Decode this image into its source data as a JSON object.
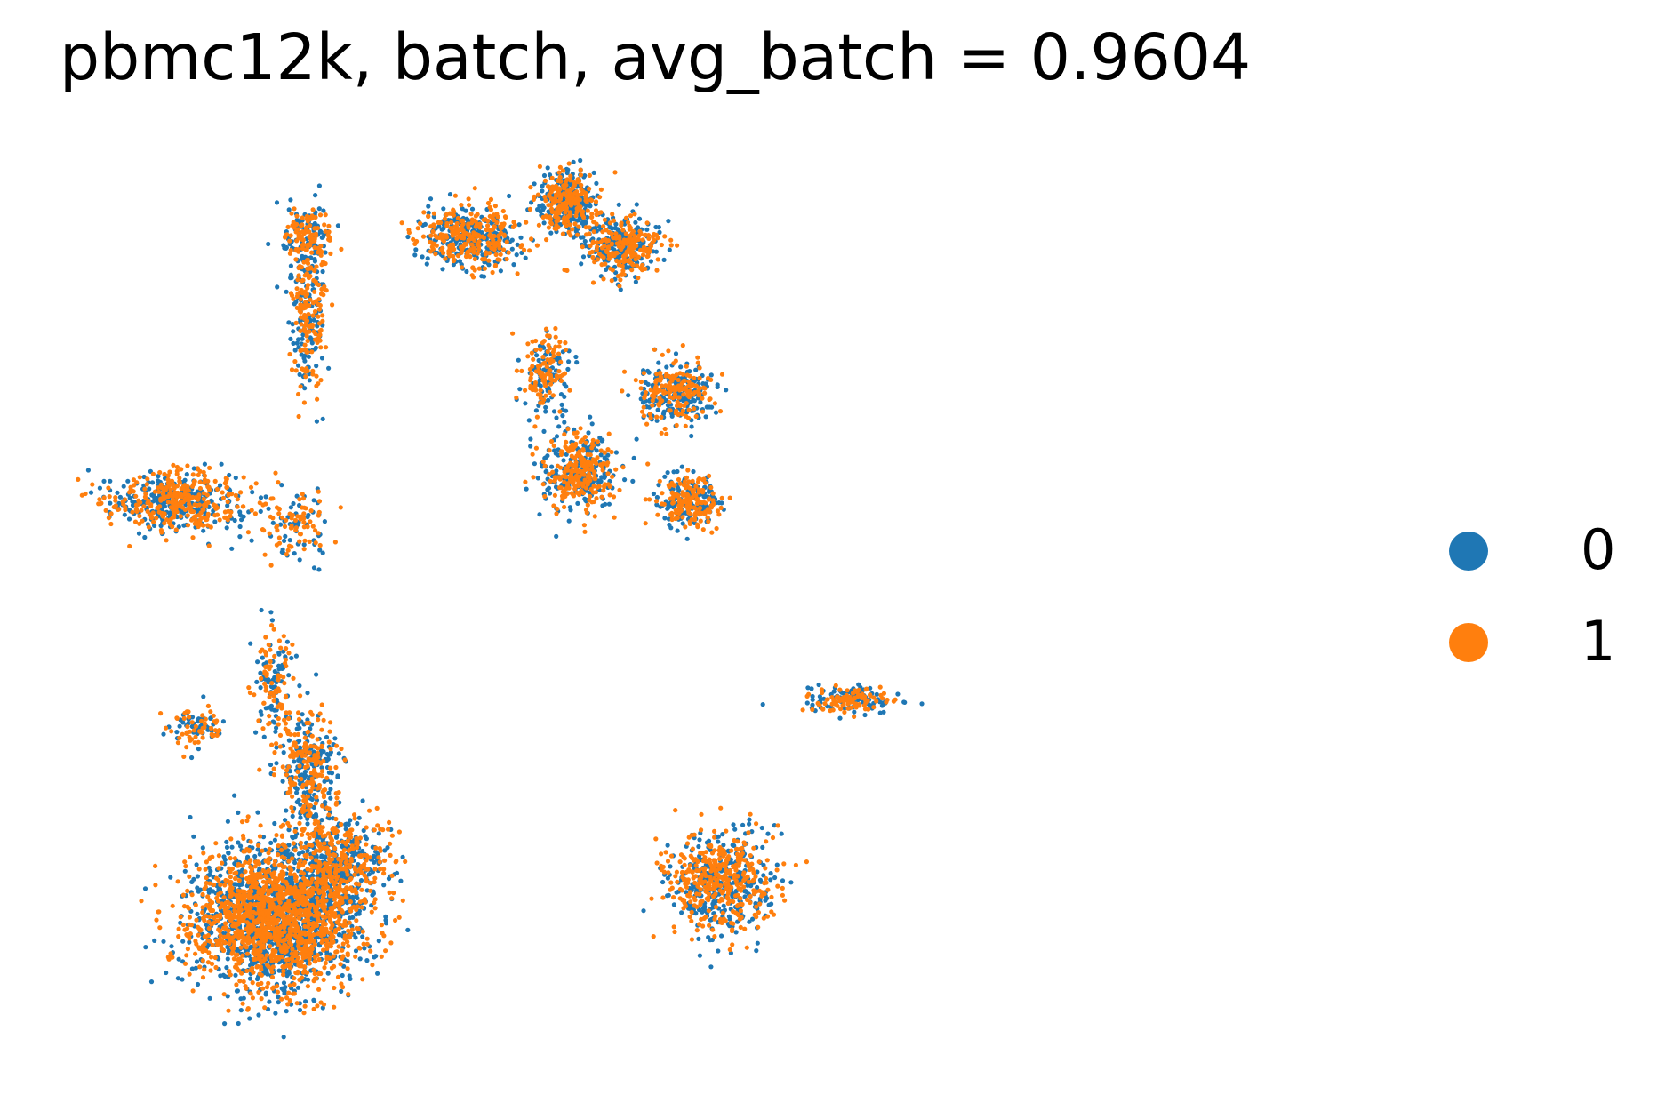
{
  "chart_data": {
    "type": "scatter",
    "title": "pbmc12k, batch, avg_batch = 0.9604",
    "xlabel": "",
    "ylabel": "",
    "axes_visible": false,
    "grid": false,
    "legend_placement": "right",
    "xlim": [
      0,
      100
    ],
    "ylim": [
      0,
      100
    ],
    "series": [
      {
        "name": "0",
        "color": "#1f77b4"
      },
      {
        "name": "1",
        "color": "#ff7f0e"
      }
    ],
    "clusters": [
      {
        "cx": 18,
        "cy": 14,
        "sx": 7,
        "sy": 7,
        "n": 2600
      },
      {
        "cx": 24,
        "cy": 20,
        "sx": 4,
        "sy": 5,
        "n": 500
      },
      {
        "cx": 21,
        "cy": 30,
        "sx": 2.5,
        "sy": 6,
        "n": 350
      },
      {
        "cx": 18,
        "cy": 40,
        "sx": 1.5,
        "sy": 6,
        "n": 150
      },
      {
        "cx": 9,
        "cy": 60,
        "sx": 6,
        "sy": 3,
        "n": 600
      },
      {
        "cx": 20,
        "cy": 57,
        "sx": 2.5,
        "sy": 4,
        "n": 120
      },
      {
        "cx": 21,
        "cy": 80,
        "sx": 1.5,
        "sy": 7,
        "n": 280
      },
      {
        "cx": 21,
        "cy": 89,
        "sx": 2,
        "sy": 3,
        "n": 200
      },
      {
        "cx": 11,
        "cy": 35,
        "sx": 2.5,
        "sy": 2,
        "n": 100
      },
      {
        "cx": 36,
        "cy": 89,
        "sx": 4,
        "sy": 3,
        "n": 500
      },
      {
        "cx": 45,
        "cy": 93,
        "sx": 2.5,
        "sy": 3,
        "n": 450
      },
      {
        "cx": 50,
        "cy": 88,
        "sx": 3,
        "sy": 3,
        "n": 400
      },
      {
        "cx": 46,
        "cy": 63,
        "sx": 3,
        "sy": 4,
        "n": 450
      },
      {
        "cx": 55,
        "cy": 72,
        "sx": 3,
        "sy": 3,
        "n": 350
      },
      {
        "cx": 56,
        "cy": 60,
        "sx": 2.5,
        "sy": 2.5,
        "n": 300
      },
      {
        "cx": 43,
        "cy": 74,
        "sx": 2,
        "sy": 4,
        "n": 200
      },
      {
        "cx": 71,
        "cy": 38,
        "sx": 4,
        "sy": 1.2,
        "n": 200
      },
      {
        "cx": 59,
        "cy": 18,
        "sx": 4.5,
        "sy": 5,
        "n": 700
      }
    ]
  },
  "legend": {
    "items": [
      {
        "label": "0",
        "color": "#1f77b4"
      },
      {
        "label": "1",
        "color": "#ff7f0e"
      }
    ]
  }
}
